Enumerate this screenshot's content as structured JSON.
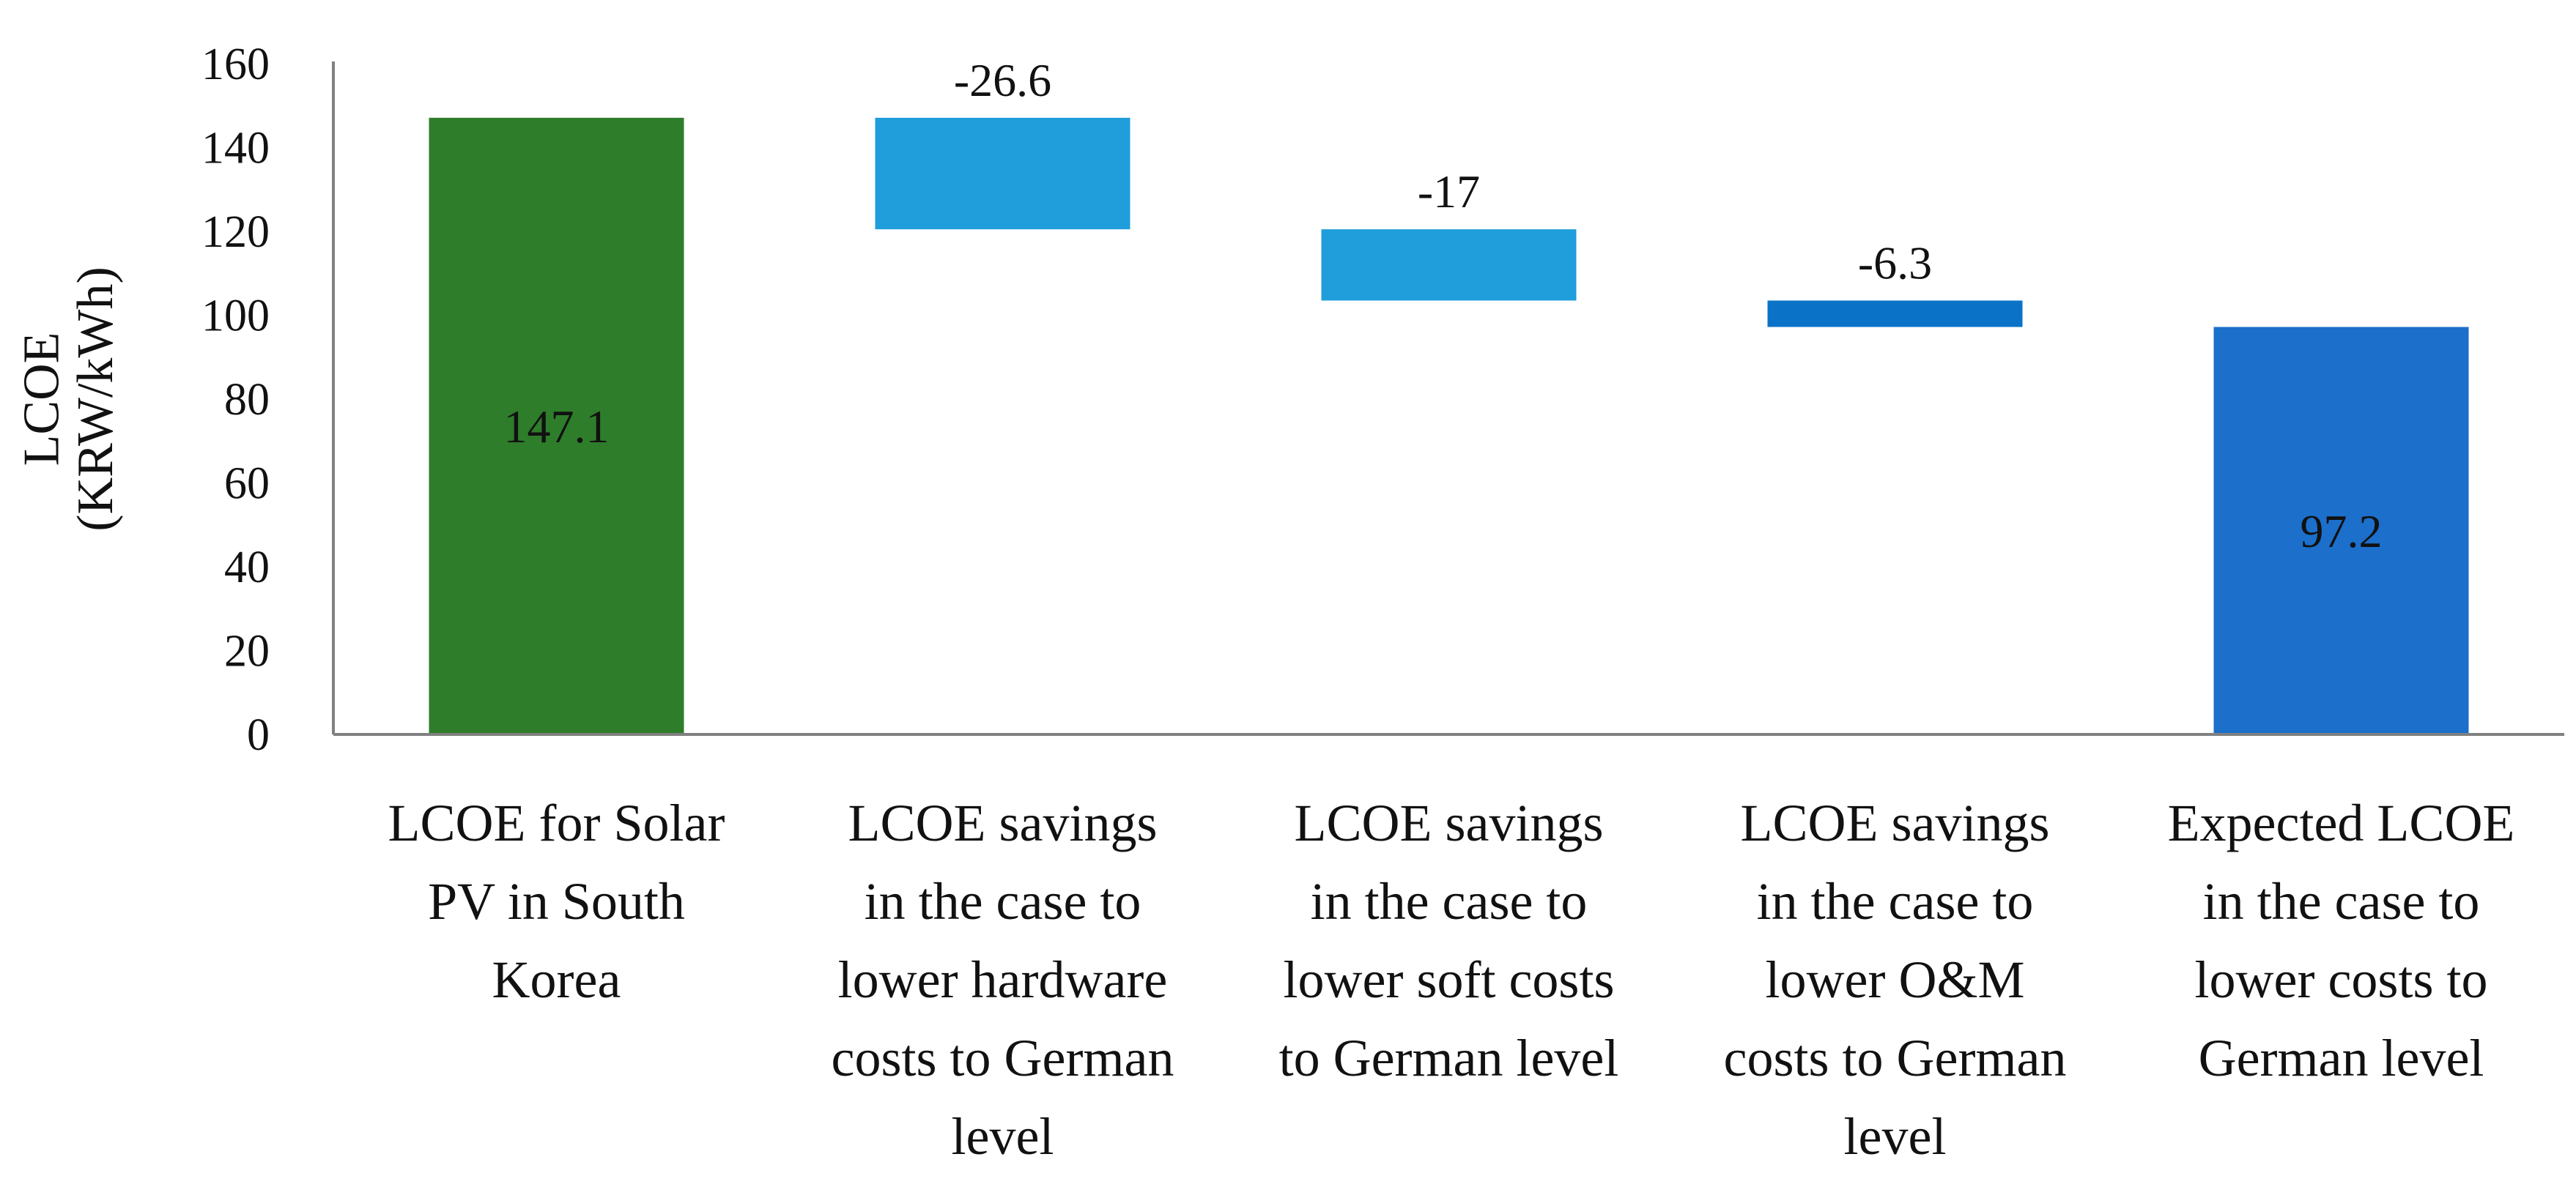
{
  "chart_data": {
    "type": "waterfall",
    "title": "",
    "xlabel": "",
    "ylabel": [
      "LCOE",
      "(KRW/kWh)"
    ],
    "ylim": [
      0,
      160
    ],
    "yticks": [
      0,
      20,
      40,
      60,
      80,
      100,
      120,
      140,
      160
    ],
    "grid": false,
    "categories": [
      [
        "LCOE for Solar",
        "PV in South",
        "Korea"
      ],
      [
        "LCOE savings",
        "in the case to",
        "lower hardware",
        "costs to German",
        "level"
      ],
      [
        "LCOE savings",
        "in the case to",
        "lower soft costs",
        "to German level"
      ],
      [
        "LCOE savings",
        "in the case to",
        "lower O&M",
        "costs to German",
        "level"
      ],
      [
        "Expected LCOE",
        "in the case to",
        "lower costs to",
        "German level"
      ]
    ],
    "bars": [
      {
        "kind": "total",
        "start": 0,
        "end": 147.1,
        "label": "147.1",
        "color": "#2e7d2a",
        "label_position": "inside"
      },
      {
        "kind": "delta",
        "start": 147.1,
        "end": 120.5,
        "label": "-26.6",
        "color": "#1f9edb",
        "label_position": "above"
      },
      {
        "kind": "delta",
        "start": 120.5,
        "end": 103.5,
        "label": "-17",
        "color": "#1f9edb",
        "label_position": "above"
      },
      {
        "kind": "delta",
        "start": 103.5,
        "end": 97.2,
        "label": "-6.3",
        "color": "#0a73c8",
        "label_position": "above"
      },
      {
        "kind": "total",
        "start": 0,
        "end": 97.2,
        "label": "97.2",
        "color": "#1c6fcb",
        "label_position": "inside"
      }
    ],
    "axis_color": "#808080"
  }
}
